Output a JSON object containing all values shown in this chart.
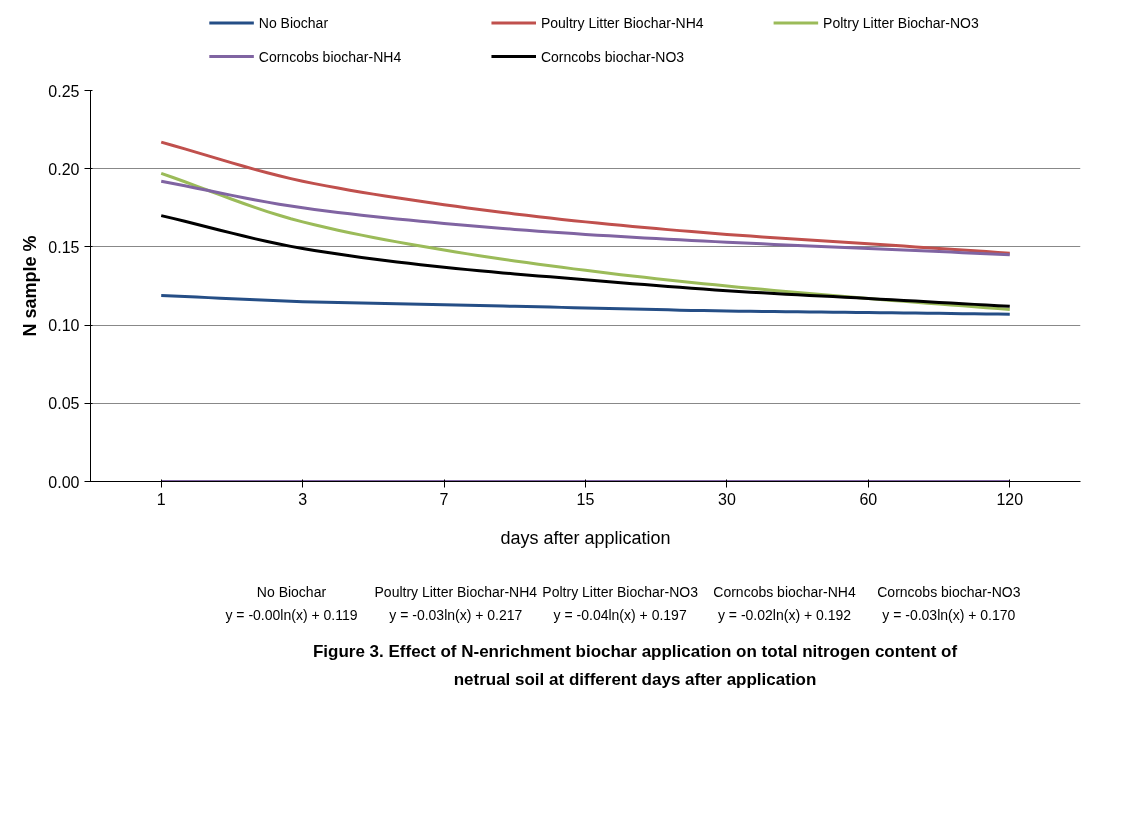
{
  "chart_data": {
    "type": "line",
    "title": "Figure 3. Effect of N-enrichment biochar application on total nitrogen content of\nnetrual soil at different days after application",
    "xlabel": "days after application",
    "ylabel": "N sample %",
    "categories": [
      "1",
      "3",
      "7",
      "15",
      "30",
      "60",
      "120"
    ],
    "ylim": [
      0,
      0.25
    ],
    "yticks": [
      {
        "value": 0,
        "label": "0.00"
      },
      {
        "value": 0.05,
        "label": "0.05"
      },
      {
        "value": 0.1,
        "label": "0.10"
      },
      {
        "value": 0.15,
        "label": "0.15"
      },
      {
        "value": 0.2,
        "label": "0.20"
      },
      {
        "value": 0.25,
        "label": "0.25"
      }
    ],
    "grid": "y",
    "legend": "top",
    "marker": "none",
    "line_style": "solid",
    "series": [
      {
        "name": "No Biochar",
        "color": "#254e86",
        "values": [
          0.119,
          0.115,
          0.113,
          0.111,
          0.109,
          0.108,
          0.107
        ]
      },
      {
        "name": "Poultry Litter Biochar-NH4",
        "color": "#c0504d",
        "values": [
          0.217,
          0.192,
          0.177,
          0.166,
          0.158,
          0.152,
          0.146
        ]
      },
      {
        "name": "Poltry Litter Biochar-NO3",
        "color": "#9bbb59",
        "values": [
          0.197,
          0.166,
          0.148,
          0.135,
          0.125,
          0.117,
          0.11
        ]
      },
      {
        "name": "Corncobs biochar-NH4",
        "color": "#8064a2",
        "values": [
          0.192,
          0.175,
          0.165,
          0.158,
          0.153,
          0.149,
          0.145
        ]
      },
      {
        "name": "Corncobs biochar-NO3",
        "color": "#000000",
        "values": [
          0.17,
          0.149,
          0.137,
          0.129,
          0.122,
          0.117,
          0.112
        ]
      },
      {
        "color": "#8064a2",
        "values": [
          0,
          0,
          0,
          0,
          0,
          0,
          0
        ]
      }
    ],
    "annotations": [
      "No Biochar\ny = -0.00ln(x) + 0.119",
      "Poultry Litter Biochar-NH4\ny = -0.03ln(x) + 0.217",
      "Poltry Litter Biochar-NO3\ny = -0.04ln(x) + 0.197",
      "Corncobs biochar-NH4\ny = -0.02ln(x) + 0.192",
      "Corncobs biochar-NO3\ny = -0.03ln(x) + 0.170"
    ]
  }
}
